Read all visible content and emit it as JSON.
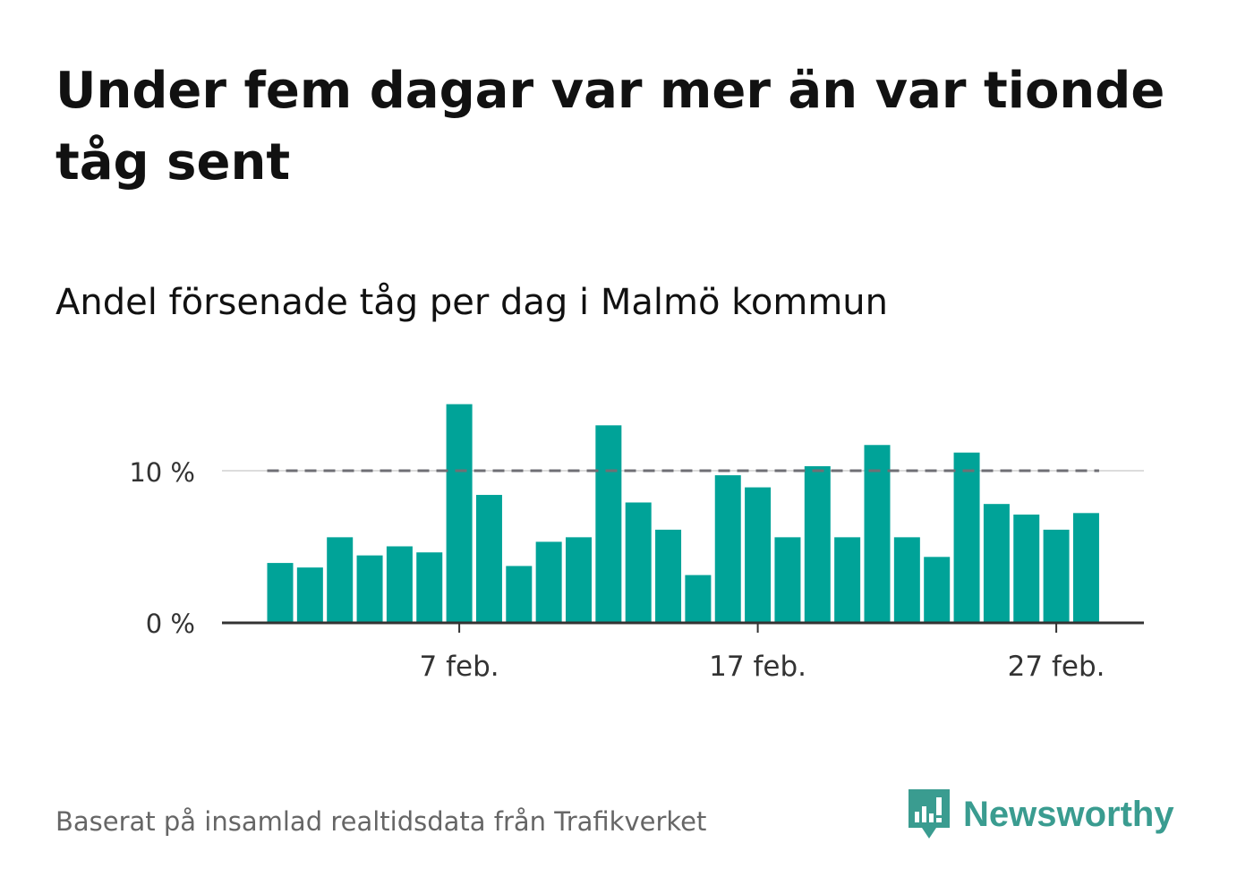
{
  "title": "Under fem dagar var mer än var tionde tåg sent",
  "subtitle": "Andel försenade tåg per dag i Malmö kommun",
  "source": "Baserat på insamlad realtidsdata från Trafikverket",
  "brand": {
    "name": "Newsworthy",
    "color": "#3a9c90",
    "icon": "newsworthy-logo-icon"
  },
  "chart_data": {
    "type": "bar",
    "x_start_date": "2021-02-01",
    "x": [
      "1 feb.",
      "2 feb.",
      "3 feb.",
      "4 feb.",
      "5 feb.",
      "6 feb.",
      "7 feb.",
      "8 feb.",
      "9 feb.",
      "10 feb.",
      "11 feb.",
      "12 feb.",
      "13 feb.",
      "14 feb.",
      "15 feb.",
      "16 feb.",
      "17 feb.",
      "18 feb.",
      "19 feb.",
      "20 feb.",
      "21 feb.",
      "22 feb.",
      "23 feb.",
      "24 feb.",
      "25 feb.",
      "26 feb.",
      "27 feb.",
      "28 feb."
    ],
    "series": [
      {
        "values": [
          3.9,
          3.6,
          5.6,
          4.4,
          5.0,
          4.6,
          14.4,
          8.4,
          3.7,
          5.3,
          5.6,
          13.0,
          7.9,
          6.1,
          3.1,
          9.7,
          8.9,
          5.6,
          10.3,
          5.6,
          11.7,
          5.6,
          4.3,
          11.2,
          7.8,
          7.1,
          6.1,
          7.2
        ]
      }
    ],
    "reference_line": {
      "value": 10,
      "style": "dashed",
      "color": "#6f6f74"
    },
    "bar_color": "#00a398",
    "ylim": [
      0,
      15
    ],
    "yticks": [
      {
        "value": 0,
        "label": "0 %"
      },
      {
        "value": 10,
        "label": "10 %"
      }
    ],
    "xticks": [
      {
        "index": 6,
        "label": "7 feb."
      },
      {
        "index": 16,
        "label": "17 feb."
      },
      {
        "index": 26,
        "label": "27 feb."
      }
    ],
    "grid": true,
    "xlabel": "",
    "ylabel": ""
  }
}
